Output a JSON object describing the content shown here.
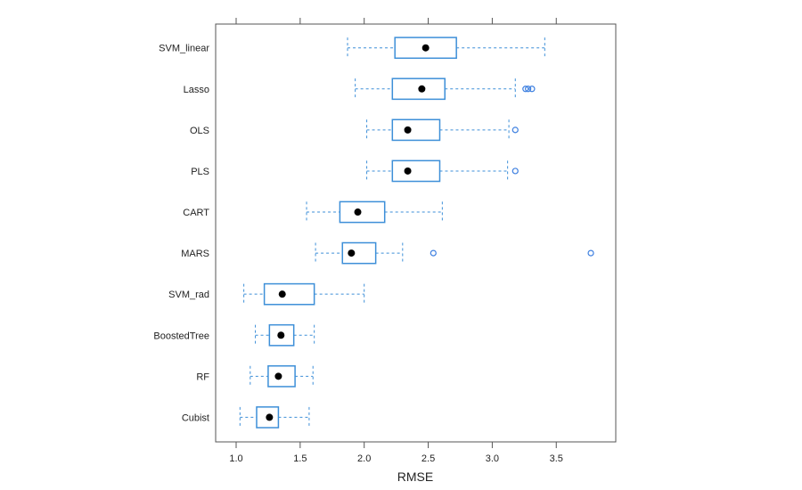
{
  "chart_data": {
    "type": "boxplot",
    "title": "",
    "xlabel": "RMSE",
    "ylabel": "",
    "xlim": [
      0.88,
      3.92
    ],
    "xticks": [
      1.0,
      1.5,
      2.0,
      2.5,
      3.0,
      3.5
    ],
    "xtick_labels": [
      "1.0",
      "1.5",
      "2.0",
      "2.5",
      "3.0",
      "3.5"
    ],
    "grid": false,
    "colors": {
      "box": "#3d8fd8",
      "box_light": "#8bbde6",
      "median": "#000000",
      "outlier": "#3d7fe0"
    },
    "series": [
      {
        "name": "SVM_linear",
        "whisker_low": 1.87,
        "q1": 2.24,
        "median": 2.48,
        "q3": 2.72,
        "whisker_high": 3.41,
        "outliers": []
      },
      {
        "name": "Lasso",
        "whisker_low": 1.93,
        "q1": 2.22,
        "median": 2.45,
        "q3": 2.63,
        "whisker_high": 3.18,
        "outliers": [
          3.26,
          3.28,
          3.31
        ]
      },
      {
        "name": "OLS",
        "whisker_low": 2.02,
        "q1": 2.22,
        "median": 2.34,
        "q3": 2.59,
        "whisker_high": 3.13,
        "outliers": [
          3.18
        ]
      },
      {
        "name": "PLS",
        "whisker_low": 2.02,
        "q1": 2.22,
        "median": 2.34,
        "q3": 2.59,
        "whisker_high": 3.12,
        "outliers": [
          3.18
        ]
      },
      {
        "name": "CART",
        "whisker_low": 1.55,
        "q1": 1.81,
        "median": 1.95,
        "q3": 2.16,
        "whisker_high": 2.61,
        "outliers": []
      },
      {
        "name": "MARS",
        "whisker_low": 1.62,
        "q1": 1.83,
        "median": 1.9,
        "q3": 2.09,
        "whisker_high": 2.3,
        "outliers": [
          2.54,
          3.77
        ]
      },
      {
        "name": "SVM_rad",
        "whisker_low": 1.06,
        "q1": 1.22,
        "median": 1.36,
        "q3": 1.61,
        "whisker_high": 2.0,
        "outliers": []
      },
      {
        "name": "BoostedTree",
        "whisker_low": 1.15,
        "q1": 1.26,
        "median": 1.35,
        "q3": 1.45,
        "whisker_high": 1.61,
        "outliers": []
      },
      {
        "name": "RF",
        "whisker_low": 1.11,
        "q1": 1.25,
        "median": 1.33,
        "q3": 1.46,
        "whisker_high": 1.6,
        "outliers": []
      },
      {
        "name": "Cubist",
        "whisker_low": 1.03,
        "q1": 1.16,
        "median": 1.26,
        "q3": 1.33,
        "whisker_high": 1.57,
        "outliers": []
      }
    ]
  }
}
